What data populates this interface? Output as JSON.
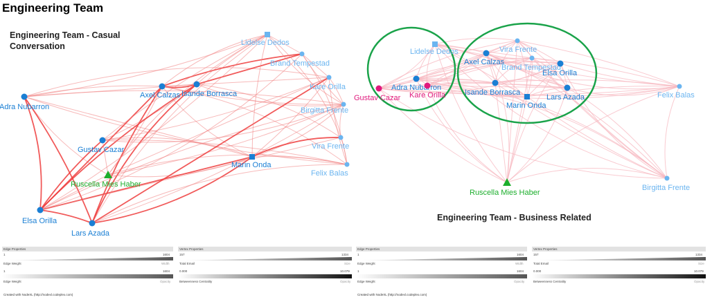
{
  "page_title": "Engineering Team",
  "left_title": "Engineering Team - Casual Conversation",
  "right_title": "Engineering Team - Business Related",
  "colors": {
    "edge": "#f08080",
    "edge_dark": "#ee3d3d",
    "edge_light": "#f7b8c0",
    "node_blue": "#1a7fd4",
    "node_light": "#6bb5f0",
    "node_green": "#1cae2c",
    "node_pink": "#e0197d",
    "circle": "#1aa34a"
  },
  "left_nodes": [
    {
      "label": "Adra Nubarron",
      "shape": "circle",
      "color": "blue"
    },
    {
      "label": "Axel Calzas",
      "shape": "circle",
      "color": "blue"
    },
    {
      "label": "Isande Borrasca",
      "shape": "circle",
      "color": "blue"
    },
    {
      "label": "Gustav Cazar",
      "shape": "circle",
      "color": "blue"
    },
    {
      "label": "Ruscella Mies Haber",
      "shape": "triangle",
      "color": "green"
    },
    {
      "label": "Elsa Orilla",
      "shape": "circle",
      "color": "blue"
    },
    {
      "label": "Lars Azada",
      "shape": "circle",
      "color": "blue"
    },
    {
      "label": "Marin Onda",
      "shape": "square",
      "color": "blue"
    },
    {
      "label": "Lidelse Dedos",
      "shape": "square",
      "color": "light"
    },
    {
      "label": "Brand Tempestad",
      "shape": "circle",
      "color": "light"
    },
    {
      "label": "Kare Orilla",
      "shape": "circle",
      "color": "light"
    },
    {
      "label": "Birgitta Frente",
      "shape": "circle",
      "color": "light"
    },
    {
      "label": "Vira Frente",
      "shape": "circle",
      "color": "light"
    },
    {
      "label": "Felix Balas",
      "shape": "circle",
      "color": "light"
    }
  ],
  "right_nodes": [
    {
      "label": "Lidelse Dedos",
      "shape": "square",
      "color": "light"
    },
    {
      "label": "Vira Frente",
      "shape": "circle",
      "color": "light"
    },
    {
      "label": "Axel Calzas",
      "shape": "circle",
      "color": "blue"
    },
    {
      "label": "Brand Tempestad",
      "shape": "circle",
      "color": "light"
    },
    {
      "label": "Elsa Orilla",
      "shape": "circle",
      "color": "blue"
    },
    {
      "label": "Adra Nubarron",
      "shape": "circle",
      "color": "blue"
    },
    {
      "label": "Kare Orilla",
      "shape": "circle",
      "color": "pink"
    },
    {
      "label": "Gustav Cazar",
      "shape": "circle",
      "color": "pink"
    },
    {
      "label": "Isande Borrasca",
      "shape": "circle",
      "color": "blue"
    },
    {
      "label": "Lars Azada",
      "shape": "circle",
      "color": "blue"
    },
    {
      "label": "Marin Onda",
      "shape": "square",
      "color": "blue"
    },
    {
      "label": "Felix Balas",
      "shape": "circle",
      "color": "light"
    },
    {
      "label": "Ruscella Mies Haber",
      "shape": "triangle",
      "color": "green"
    },
    {
      "label": "Birgitta Frente",
      "shape": "circle",
      "color": "light"
    }
  ],
  "legend_left": {
    "edge_header": "Edge Properties",
    "vertex_header": "Vertex Properties",
    "e1_min": "1",
    "e1_max": "1604",
    "e1_label": "Edge Weight",
    "e1_prop": "Width",
    "e2_min": "1",
    "e2_max": "1604",
    "e2_label": "Edge Weight",
    "e2_prop": "Opacity",
    "v1_min": "157",
    "v1_max": "1334",
    "v1_label": "Total Email",
    "v1_prop": "Size",
    "v2_min": "0.000",
    "v2_max": "10.079",
    "v2_label": "Betweenness Centrality",
    "v2_prop": "Opacity",
    "credit": "Created with NodeXL (http://nodexl.codeplex.com)"
  },
  "legend_right": {
    "edge_header": "Edge Properties",
    "vertex_header": "Vertex Properties",
    "e1_min": "1",
    "e1_max": "1604",
    "e1_label": "Edge Weight",
    "e1_prop": "Width",
    "e2_min": "1",
    "e2_max": "1604",
    "e2_label": "Edge Weight",
    "e2_prop": "Opacity",
    "v1_min": "157",
    "v1_max": "1334",
    "v1_label": "Total Email",
    "v1_prop": "Size",
    "v2_min": "0.000",
    "v2_max": "10.079",
    "v2_label": "Betweenness Centrality",
    "v2_prop": "Opacity",
    "credit": "Created with NodeXL (http://nodexl.codeplex.com)"
  }
}
